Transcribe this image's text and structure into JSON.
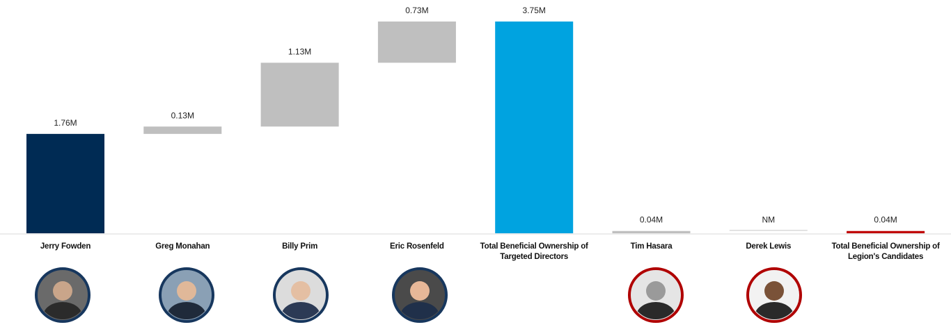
{
  "chart_data": {
    "type": "waterfall",
    "categories": [
      "Jerry Fowden",
      "Greg Monahan",
      "Billy Prim",
      "Eric Rosenfeld",
      "Total Beneficial Ownership of Targeted Directors",
      "Tim Hasara",
      "Derek Lewis",
      "Total Beneficial Ownership of Legion's Candidates"
    ],
    "values": [
      1.76,
      0.13,
      1.13,
      0.73,
      3.75,
      0.04,
      null,
      0.04
    ],
    "value_labels": [
      "1.76M",
      "0.13M",
      "1.13M",
      "0.73M",
      "3.75M",
      "0.04M",
      "NM",
      "0.04M"
    ],
    "measure": [
      "relative",
      "relative",
      "relative",
      "relative",
      "total",
      "relative",
      "relative",
      "total"
    ],
    "colors": [
      "#002b54",
      "#bfbfbf",
      "#bfbfbf",
      "#bfbfbf",
      "#00a3e0",
      "#bfbfbf",
      "#d9d9d9",
      "#c00000"
    ]
  }
}
